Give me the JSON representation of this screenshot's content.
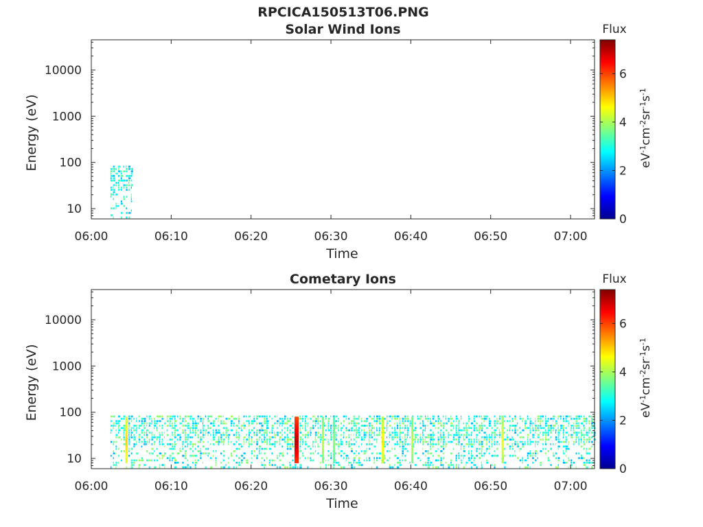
{
  "figure": {
    "title": "RPCICA150513T06.PNG"
  },
  "chart_data": [
    {
      "type": "heatmap",
      "title": "Solar Wind Ions",
      "xlabel": "Time",
      "ylabel": "Energy (eV)",
      "yscale": "log",
      "ylim": [
        6,
        45000
      ],
      "xlim": [
        "06:00",
        "07:03"
      ],
      "xticks": [
        "06:00",
        "06:10",
        "06:20",
        "06:30",
        "06:40",
        "06:50",
        "07:00"
      ],
      "yticks": [
        "10",
        "100",
        "1000",
        "10000"
      ],
      "colorbar": {
        "title": "Flux",
        "label": "eV-1cm-2sr-1s-1",
        "range": [
          0,
          7.4
        ],
        "ticks": [
          "0",
          "2",
          "4",
          "6"
        ],
        "colormap": "jet"
      },
      "regions": [
        {
          "t_start": "06:02.4",
          "t_end": "06:05.2",
          "energy_range": [
            6,
            80
          ],
          "flux_range": [
            2.2,
            3.6
          ]
        }
      ]
    },
    {
      "type": "heatmap",
      "title": "Cometary Ions",
      "xlabel": "Time",
      "ylabel": "Energy (eV)",
      "yscale": "log",
      "ylim": [
        6,
        45000
      ],
      "xlim": [
        "06:00",
        "07:03"
      ],
      "xticks": [
        "06:00",
        "06:10",
        "06:20",
        "06:30",
        "06:40",
        "06:50",
        "07:00"
      ],
      "yticks": [
        "10",
        "100",
        "1000",
        "10000"
      ],
      "colorbar": {
        "title": "Flux",
        "label": "eV-1cm-2sr-1s-1",
        "range": [
          0,
          7.4
        ],
        "ticks": [
          "0",
          "2",
          "4",
          "6"
        ],
        "colormap": "jet"
      },
      "regions": [
        {
          "t_start": "06:02.4",
          "t_end": "07:03",
          "energy_range": [
            6,
            80
          ],
          "flux_range": [
            2.2,
            4.0
          ]
        }
      ],
      "intense_bursts": [
        {
          "time": "06:04.4",
          "flux_peak": 5.0
        },
        {
          "time": "06:25.7",
          "flux_peak": 7.0
        },
        {
          "time": "06:29.0",
          "flux_peak": 4.2
        },
        {
          "time": "06:30.4",
          "flux_peak": 3.8
        },
        {
          "time": "06:36.5",
          "flux_peak": 4.8
        },
        {
          "time": "06:40.2",
          "flux_peak": 4.2
        },
        {
          "time": "06:51.5",
          "flux_peak": 4.6
        }
      ]
    }
  ]
}
